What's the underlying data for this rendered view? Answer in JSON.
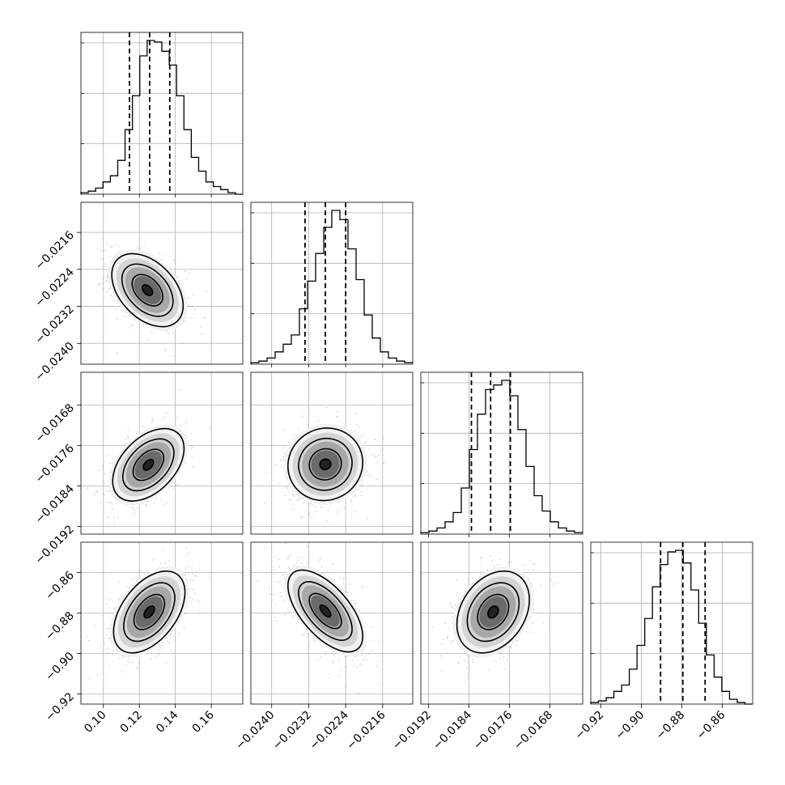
{
  "chart_data": {
    "type": "corner",
    "grid": true,
    "parameters": [
      {
        "range": [
          0.0875,
          0.1775
        ],
        "ticks": [
          0.1,
          0.12,
          0.14,
          0.16
        ],
        "tick_labels": [
          "0.10",
          "0.12",
          "0.14",
          "0.16"
        ],
        "quantiles": [
          0.1145,
          0.1257,
          0.1369
        ],
        "hist_bins": [
          0.0875,
          0.1775
        ],
        "hist_counts": [
          1,
          2,
          4,
          8,
          12,
          22,
          42,
          64,
          90,
          100,
          99,
          93,
          84,
          64,
          42,
          24,
          15,
          8,
          5,
          3,
          1,
          0
        ]
      },
      {
        "range": [
          -0.02445,
          -0.02095
        ],
        "ticks": [
          -0.024,
          -0.0232,
          -0.0224,
          -0.0216
        ],
        "tick_labels": [
          "−0.0240",
          "−0.0232",
          "−0.0224",
          "−0.0216"
        ],
        "quantiles": [
          -0.02328,
          -0.02284,
          -0.0224
        ],
        "hist_bins": [
          -0.02445,
          -0.02095
        ],
        "hist_counts": [
          1,
          2,
          4,
          8,
          13,
          19,
          36,
          54,
          72,
          89,
          100,
          94,
          75,
          55,
          32,
          17,
          8,
          4,
          2,
          1
        ]
      },
      {
        "range": [
          -0.01935,
          -0.01615
        ],
        "ticks": [
          -0.0192,
          -0.0184,
          -0.0176,
          -0.0168
        ],
        "tick_labels": [
          "−0.0192",
          "−0.0184",
          "−0.0176",
          "−0.0168"
        ],
        "quantiles": [
          -0.01835,
          -0.01797,
          -0.01758
        ],
        "hist_bins": [
          -0.01935,
          -0.01615
        ],
        "hist_counts": [
          1,
          2,
          4,
          8,
          14,
          30,
          55,
          78,
          94,
          97,
          100,
          90,
          68,
          44,
          25,
          15,
          8,
          4,
          2,
          1
        ]
      },
      {
        "range": [
          -0.925,
          -0.845
        ],
        "ticks": [
          -0.92,
          -0.9,
          -0.88,
          -0.86
        ],
        "tick_labels": [
          "−0.92",
          "−0.90",
          "−0.88",
          "−0.86"
        ],
        "quantiles": [
          -0.8905,
          -0.8795,
          -0.8685
        ],
        "hist_bins": [
          -0.925,
          -0.845
        ],
        "hist_counts": [
          1,
          2,
          4,
          8,
          12,
          22,
          37,
          54,
          74,
          88,
          96,
          97,
          89,
          72,
          51,
          31,
          17,
          8,
          3,
          1,
          0
        ]
      }
    ],
    "pairs": [
      {
        "x": 0,
        "y": 1,
        "mean": [
          0.1245,
          -0.02285
        ],
        "sd": [
          0.0108,
          0.00043
        ],
        "rho": -0.42
      },
      {
        "x": 0,
        "y": 2,
        "mean": [
          0.125,
          -0.01798
        ],
        "sd": [
          0.0108,
          0.00039
        ],
        "rho": 0.45
      },
      {
        "x": 1,
        "y": 2,
        "mean": [
          -0.02284,
          -0.01797
        ],
        "sd": [
          0.00044,
          0.00039
        ],
        "rho": 0.05
      },
      {
        "x": 0,
        "y": 3,
        "mean": [
          0.1255,
          -0.8795
        ],
        "sd": [
          0.0108,
          0.011
        ],
        "rho": 0.48
      },
      {
        "x": 1,
        "y": 3,
        "mean": [
          -0.02284,
          -0.879
        ],
        "sd": [
          0.00044,
          0.011
        ],
        "rho": -0.62
      },
      {
        "x": 2,
        "y": 3,
        "mean": [
          -0.01792,
          -0.8795
        ],
        "sd": [
          0.00039,
          0.011
        ],
        "rho": 0.3
      }
    ]
  }
}
